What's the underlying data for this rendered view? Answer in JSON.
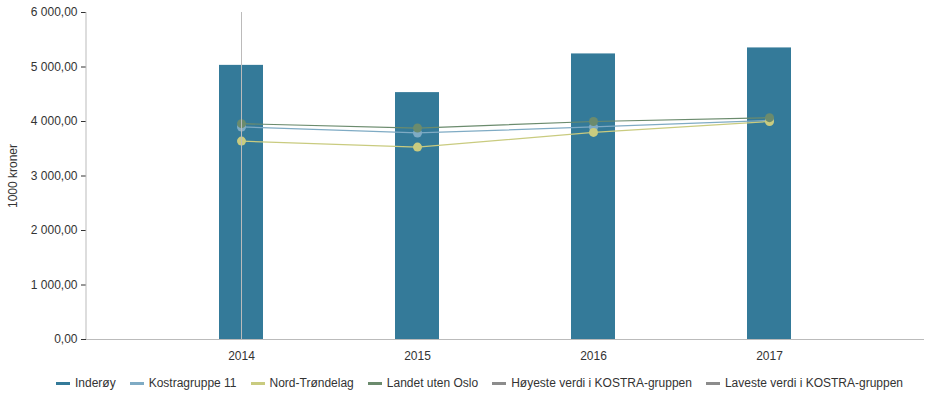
{
  "chart_data": {
    "type": "bar",
    "y_label": "1000 kroner",
    "categories": [
      "2014",
      "2015",
      "2016",
      "2017"
    ],
    "ylim": [
      0,
      6000
    ],
    "yticks": [
      {
        "value": 0,
        "label": "0,00"
      },
      {
        "value": 1000,
        "label": "1 000,00"
      },
      {
        "value": 2000,
        "label": "2 000,00"
      },
      {
        "value": 3000,
        "label": "3 000,00"
      },
      {
        "value": 4000,
        "label": "4 000,00"
      },
      {
        "value": 5000,
        "label": "5 000,00"
      },
      {
        "value": 6000,
        "label": "6 000,00"
      }
    ],
    "grid": false,
    "legend": "bottom",
    "series": [
      {
        "name": "Inderøy",
        "type": "bar",
        "color": "#347a99",
        "values": [
          5030,
          4530,
          5240,
          5350
        ]
      },
      {
        "name": "Kostragruppe 11",
        "type": "line",
        "marker": "circle",
        "color": "#7fabc4",
        "values": [
          3900,
          3790,
          3900,
          4020
        ]
      },
      {
        "name": "Nord-Trøndelag",
        "type": "line",
        "marker": "circle",
        "color": "#c9cb7f",
        "values": [
          3640,
          3530,
          3800,
          4000
        ]
      },
      {
        "name": "Landet uten Oslo",
        "type": "line",
        "marker": "circle",
        "color": "#6b8b6d",
        "values": [
          3960,
          3880,
          4000,
          4070
        ]
      },
      {
        "name": "Høyeste verdi i KOSTRA-gruppen",
        "type": "line",
        "marker": "circle",
        "color": "#8c8c8c",
        "values": [
          null,
          null,
          null,
          null
        ]
      },
      {
        "name": "Laveste verdi i KOSTRA-gruppen",
        "type": "line",
        "marker": "circle",
        "color": "#8c8c8c",
        "values": [
          null,
          null,
          null,
          null
        ]
      }
    ]
  }
}
